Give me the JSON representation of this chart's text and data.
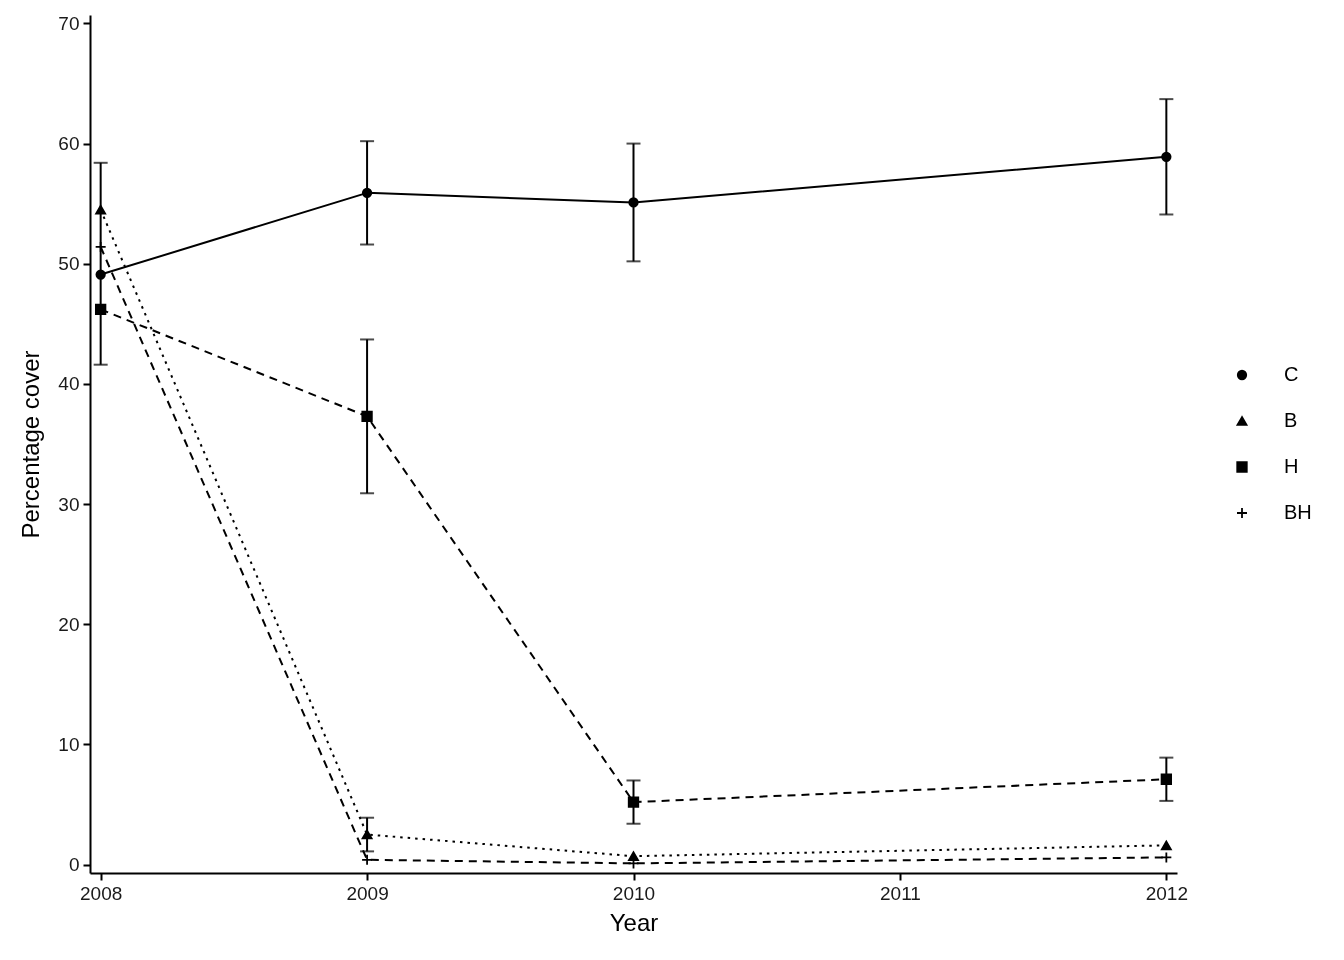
{
  "chart_data": {
    "type": "line",
    "xlabel": "Year",
    "ylabel": "Percentage cover",
    "x": [
      2008,
      2009,
      2010,
      2012
    ],
    "xlim": [
      2007.96,
      2012.04
    ],
    "xticks": [
      2008,
      2009,
      2010,
      2011,
      2012
    ],
    "ylim": [
      -0.7,
      70.7
    ],
    "yticks": [
      0,
      10,
      20,
      30,
      40,
      50,
      60,
      70
    ],
    "legend": "right",
    "series": [
      {
        "name": "C",
        "color": "#000000",
        "marker": "circle",
        "line_style": "solid",
        "values": [
          49.1,
          55.9,
          55.1,
          58.9
        ],
        "errors": [
          [
            41.6,
            58.4
          ],
          4.3,
          4.9,
          4.8
        ]
      },
      {
        "name": "B",
        "color": "#000000",
        "marker": "triangle",
        "line_style": "dotted",
        "values": [
          54.5,
          2.5,
          0.7,
          1.6
        ],
        "errors": [
          null,
          1.4,
          null,
          null
        ]
      },
      {
        "name": "H",
        "color": "#000000",
        "marker": "square",
        "line_style": "dashed",
        "values": [
          46.2,
          37.3,
          5.2,
          7.1
        ],
        "errors": [
          null,
          6.4,
          1.8,
          1.8
        ]
      },
      {
        "name": "BH",
        "color": "#000000",
        "marker": "cross",
        "line_style": "dashed",
        "values": [
          51.4,
          0.4,
          0.1,
          0.6
        ]
      }
    ]
  }
}
